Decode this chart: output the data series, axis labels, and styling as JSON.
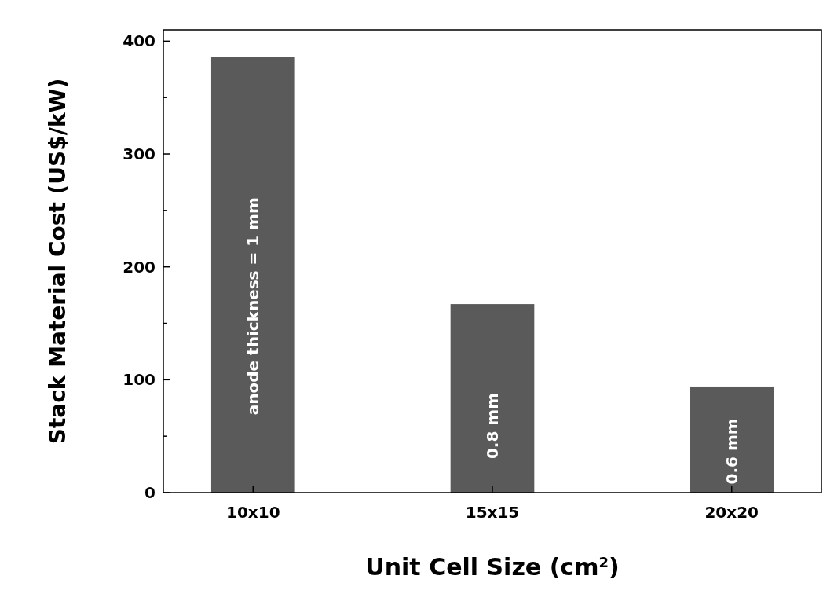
{
  "chart_data": {
    "type": "bar",
    "xlabel": "Unit Cell Size (cm$^{2}$)",
    "ylabel": "Stack Material Cost (US$/kW)",
    "categories": [
      "10x10",
      "15x15",
      "20x20"
    ],
    "values": [
      386,
      167,
      94
    ],
    "color": "#5a5a5a",
    "ylim": [
      0,
      410
    ],
    "yticks": [
      0,
      {
        "value": 50,
        "label": null
      },
      100,
      {
        "value": 150,
        "label": null
      },
      200,
      {
        "value": 250,
        "label": null
      },
      300,
      {
        "value": 350,
        "label": null
      },
      400
    ],
    "annotations": [
      "anode thickness = 1 mm",
      "0.8 mm",
      "0.6 mm"
    ],
    "grid": false
  }
}
